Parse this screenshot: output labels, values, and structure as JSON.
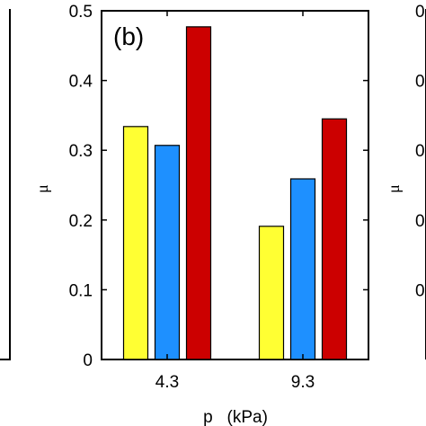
{
  "chart_data": {
    "type": "bar",
    "panel_label": "(b)",
    "categories": [
      "4.3",
      "9.3"
    ],
    "series": [
      {
        "values": [
          0.334,
          0.191
        ],
        "color": "#ffff33"
      },
      {
        "values": [
          0.307,
          0.259
        ],
        "color": "#1e90ff"
      },
      {
        "values": [
          0.477,
          0.345
        ],
        "color": "#cc0000"
      }
    ],
    "xlabel": "p   (kPa)",
    "ylabel": "μ",
    "ylim": [
      0,
      0.5
    ],
    "yticks": [
      0,
      0.1,
      0.2,
      0.3,
      0.4,
      0.5
    ],
    "ytick_labels": [
      "0",
      "0.1",
      "0.2",
      "0.3",
      "0.4",
      "0.5"
    ],
    "grid": false,
    "neighbor_panels": {
      "right_ylabel": "μ",
      "right_tick_fragments": [
        "0",
        "0",
        "0",
        "0",
        "0"
      ]
    }
  }
}
